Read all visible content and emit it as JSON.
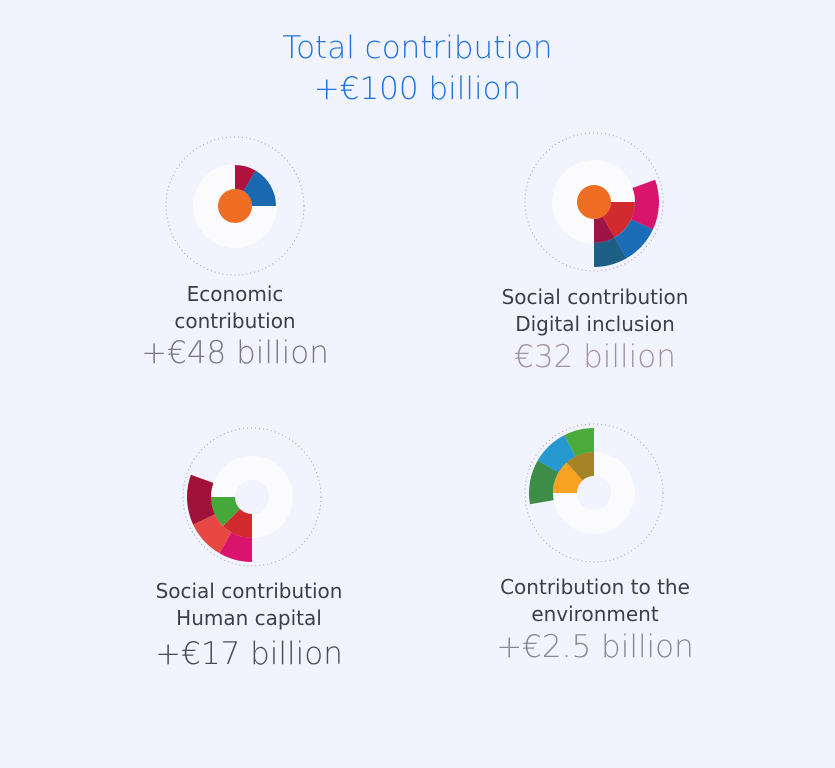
{
  "header": {
    "title": "Total contribution",
    "value": "+€100 billion",
    "color": "#1f72e0"
  },
  "chart_data": [
    {
      "type": "pie",
      "label": "Economic contribution",
      "value": "+€48 billion",
      "value_color": "#7d7680",
      "segments": [
        {
          "ring": 1,
          "from": 0,
          "to": 30,
          "color": "#b0123f"
        },
        {
          "ring": 1,
          "from": 30,
          "to": 90,
          "color": "#1968b0"
        },
        {
          "ring": 0,
          "from": 0,
          "to": 360,
          "color": "#f06e23"
        }
      ]
    },
    {
      "type": "pie",
      "label": "Social contribution Digital inclusion",
      "value": "€32 billion",
      "value_color": "#a58fa6",
      "segments": [
        {
          "ring": 0,
          "from": 0,
          "to": 360,
          "color": "#f06e23"
        },
        {
          "ring": 1,
          "from": 90,
          "to": 150,
          "color": "#d12a2f"
        },
        {
          "ring": 1,
          "from": 150,
          "to": 180,
          "color": "#9f1447"
        },
        {
          "ring": 2,
          "from": 70,
          "to": 115,
          "color": "#d8146c"
        },
        {
          "ring": 2,
          "from": 115,
          "to": 150,
          "color": "#1a6db6"
        },
        {
          "ring": 2,
          "from": 150,
          "to": 180,
          "color": "#1e5f86"
        }
      ]
    },
    {
      "type": "pie",
      "label": "Social contribution Human capital",
      "value": "+€17 billion",
      "value_color": "#4a4a55",
      "segments": [
        {
          "ring": 1,
          "from": 180,
          "to": 225,
          "color": "#d12a2f"
        },
        {
          "ring": 1,
          "from": 225,
          "to": 270,
          "color": "#46a83b"
        },
        {
          "ring": 2,
          "from": 180,
          "to": 210,
          "color": "#d8146c"
        },
        {
          "ring": 2,
          "from": 210,
          "to": 245,
          "color": "#e94744"
        },
        {
          "ring": 2,
          "from": 245,
          "to": 290,
          "color": "#a01238"
        }
      ]
    },
    {
      "type": "pie",
      "label": "Contribution to the environment",
      "value": "+€2.5 billion",
      "value_color": "#878a8d",
      "segments": [
        {
          "ring": 1,
          "from": 270,
          "to": 318,
          "color": "#f7a223"
        },
        {
          "ring": 1,
          "from": 318,
          "to": 360,
          "color": "#a58427"
        },
        {
          "ring": 2,
          "from": 260,
          "to": 300,
          "color": "#3d8d48"
        },
        {
          "ring": 2,
          "from": 300,
          "to": 333,
          "color": "#2799d1"
        },
        {
          "ring": 2,
          "from": 333,
          "to": 360,
          "color": "#4aab3a"
        }
      ]
    }
  ]
}
